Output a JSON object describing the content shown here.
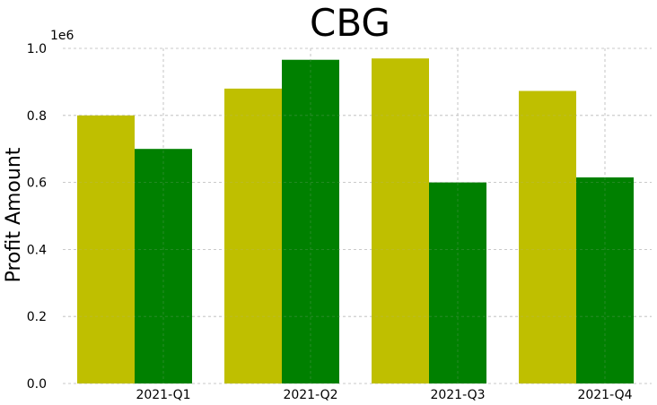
{
  "chart_data": {
    "type": "bar",
    "title": "CBG",
    "xlabel": "",
    "ylabel": "Profit Amount",
    "y_offset_label": "1e6",
    "categories": [
      "2021-Q1",
      "2021-Q2",
      "2021-Q3",
      "2021-Q4"
    ],
    "series": [
      {
        "color": "#bfbf00",
        "values": [
          0.8,
          0.88,
          0.97,
          0.873
        ]
      },
      {
        "color": "#008000",
        "values": [
          0.7,
          0.966,
          0.6,
          0.615
        ]
      }
    ],
    "ylim": [
      0.0,
      1.0
    ],
    "yticks": [
      0.0,
      0.2,
      0.4,
      0.6,
      0.8,
      1.0
    ],
    "ytick_labels": [
      "0.0",
      "0.2",
      "0.4",
      "0.6",
      "0.8",
      "1.0"
    ],
    "grid": true,
    "legend": "none"
  }
}
